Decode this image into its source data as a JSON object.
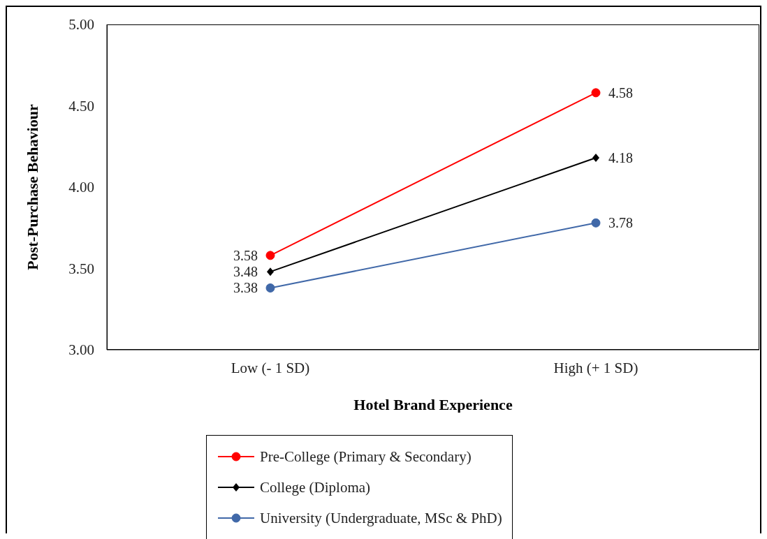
{
  "chart_data": {
    "type": "line",
    "xlabel": "Hotel Brand Experience",
    "ylabel": "Post-Purchase Behaviour",
    "categories": [
      "Low (- 1 SD)",
      "High (+ 1 SD)"
    ],
    "series": [
      {
        "name": "Pre-College (Primary & Secondary)",
        "color": "#ff0000",
        "marker": "circle",
        "values": [
          3.58,
          4.58
        ]
      },
      {
        "name": "College (Diploma)",
        "color": "#000000",
        "marker": "diamond",
        "values": [
          3.48,
          4.18
        ]
      },
      {
        "name": "University (Undergraduate, MSc & PhD)",
        "color": "#4068a8",
        "marker": "circle",
        "values": [
          3.38,
          3.78
        ]
      }
    ],
    "ylim": [
      3,
      5
    ],
    "yticks": [
      {
        "value": 3,
        "label": "3.00"
      },
      {
        "value": 3.5,
        "label": "3.50"
      },
      {
        "value": 4,
        "label": "4.00"
      },
      {
        "value": 4.5,
        "label": "4.50"
      },
      {
        "value": 5,
        "label": "5.00"
      }
    ],
    "grid": false,
    "legend": "bottom",
    "data_labels": true,
    "line_style": "solid"
  }
}
